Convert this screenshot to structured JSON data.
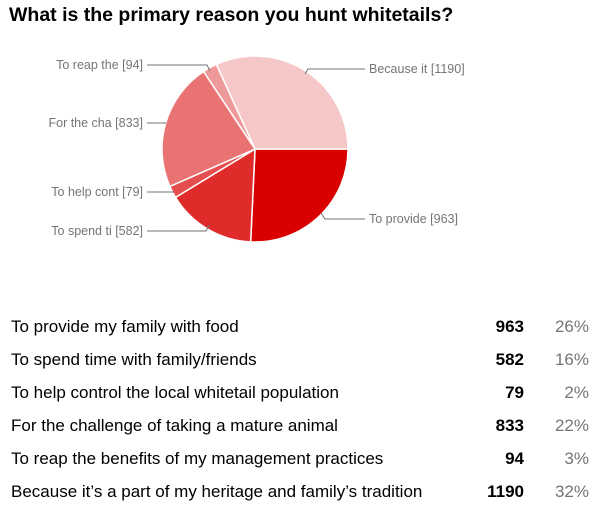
{
  "title": "What is the primary reason you hunt whitetails?",
  "callouts": [
    {
      "text": "To reap the  [94]"
    },
    {
      "text": "For the cha [833]"
    },
    {
      "text": "To help cont [79]"
    },
    {
      "text": "To spend ti [582]"
    },
    {
      "text": "Because it [1190]"
    },
    {
      "text": "To provide  [963]"
    }
  ],
  "rows": [
    {
      "label": "To provide my family with food",
      "count": "963",
      "pct": "26%"
    },
    {
      "label": "To spend time with family/friends",
      "count": "582",
      "pct": "16%"
    },
    {
      "label": "To help control the local whitetail population",
      "count": "79",
      "pct": "2%"
    },
    {
      "label": "For the challenge of taking a mature animal",
      "count": "833",
      "pct": "22%"
    },
    {
      "label": "To reap the benefits of my management practices",
      "count": "94",
      "pct": "3%"
    },
    {
      "label": "Because it’s a part of my heritage and family’s tradition",
      "count": "1190",
      "pct": "32%"
    }
  ],
  "chart_data": {
    "type": "pie",
    "title": "What is the primary reason you hunt whitetails?",
    "start_angle": "3 o'clock, clockwise",
    "categories": [
      "To provide my family with food",
      "To spend time with family/friends",
      "To help control the local whitetail population",
      "For the challenge of taking a mature animal",
      "To reap the benefits of my management practices",
      "Because it’s a part of my heritage and family’s tradition"
    ],
    "short_labels": [
      "To provide",
      "To spend ti",
      "To help cont",
      "For the cha",
      "To reap the",
      "Because it"
    ],
    "values": [
      963,
      582,
      79,
      833,
      94,
      1190
    ],
    "percentages": [
      26,
      16,
      2,
      22,
      3,
      32
    ],
    "colors": [
      "#db0000",
      "#e02b2b",
      "#e44e4e",
      "#e97373",
      "#ee9a9a",
      "#f6c7c7"
    ],
    "legend": "callout labels with leader lines"
  }
}
